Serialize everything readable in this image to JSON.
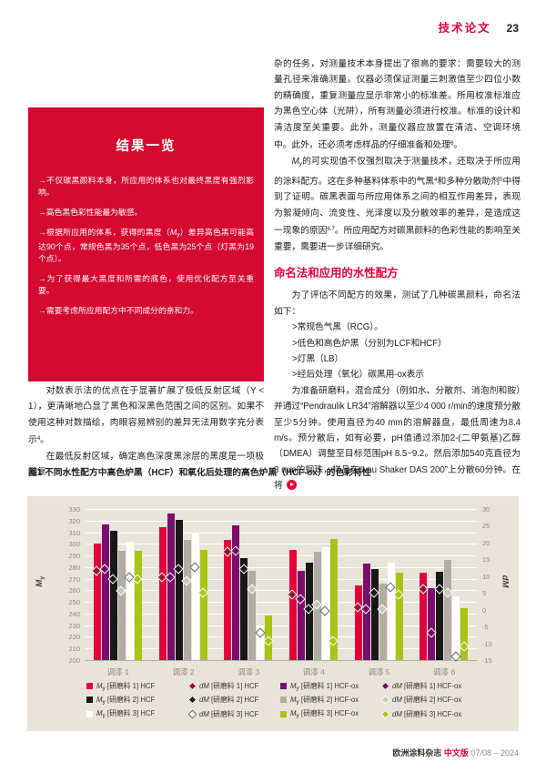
{
  "header": {
    "title": "技术论文",
    "page_number": "23"
  },
  "results_box": {
    "title": "结果一览",
    "bullets": [
      "→不仅碳黑颜料本身，所应用的体系也对最终黑度有强烈影响。",
      "→高色黑色彩性能最为敏感。",
      "→根据所应用的体系，获得的黑度（My）差异高色黑可能高达90个点，常规色黑为35个点，低色黑为25个点（灯黑为19个点）。",
      "→为了获得最大黑度和所需的底色，使用优化配方至关重要。",
      "→需要考虑所应用配方中不同成分的亲和力。"
    ]
  },
  "left_column": {
    "paragraph1": "对数表示法的优点在于显著扩展了极低反射区域（Y < 1），更清晰地凸显了黑色和深黑色范围之间的区别。如果不使用这种对数描绘，肉眼容易辨别的差异无法用数字充分表示[4]。",
    "paragraph2": "在最低反射区域，确定高色深度黑涂层的黑度是一项极其复"
  },
  "right_column": {
    "paragraph1": "杂的任务，对测量技术本身提出了很高的要求：需要较大的测量孔径来准确测量。仪器必须保证测量三刺激值至少四位小数的精确度，重复测量应显示非常小的标准差。所用校准标准应为黑色空心体（光阱），所有测量必须进行校准。标准的设计和清洁度至关重要。此外，测量仪器应放置在清洁、空调环境中。此外，还必须考虑样品的仔细准备和处理[6]。",
    "paragraph2": "My的可实现值不仅强烈取决于测量技术，还取决于所应用的涂料配方。这在多种基料体系中的气黑[4]和多种分散助剂[5]中得到了证明。碳黑表面与所应用体系之间的相互作用差异，表现为絮凝倾向、流变性、光泽度以及分散效率的差异，是造成这一现象的原因[6,7]。所应用配方对碳黑颜料的色彩性能的影响至关重要，需要进一步详细研究。",
    "section_heading": "命名法和应用的水性配方",
    "intro": "为了评估不同配方的效果，测试了几种碳黑颜料，命名法如下：",
    "list": [
      ">常规色气黑（RCG）。",
      ">低色和高色炉黑（分别为LCF和HCF）",
      ">灯黑（LB）",
      ">经后处理（氧化）碳黑用-ox表示"
    ],
    "procedure": "为准备研磨料，混合成分（例如水、分散剂、消泡剂和胺）并通过“Pendraulik LR34”溶解器以至少4 000 r/min的速度预分散至少5分钟。使用直径为40 mm的溶解器盘，最低周速为8.4 m/s。预分散后，如有必要，pH值通过添加2-(二甲氨基)乙醇（DMEA）调整至目标范围pH 8.5~9.2。然后添加540克直径为3 mm的钢珠，样品在“Lau Shaker DAS 200”上分散60分钟。在将"
  },
  "chart_data": {
    "type": "bar",
    "title": "图1 不同水性配方中高色炉黑（HCF）和氧化后处理的高色炉黑（HCF-ox）的色彩特性",
    "categories": [
      "调漆 1",
      "调漆 2",
      "调漆 3",
      "调漆 4",
      "调漆 5",
      "调漆 6"
    ],
    "left_axis": {
      "label": "My",
      "min": 200,
      "max": 330,
      "step": 10
    },
    "right_axis": {
      "label": "dM",
      "min": -15,
      "max": 30,
      "step": 5
    },
    "grid": true,
    "legend_position": "bottom",
    "bar_series": [
      {
        "name": "My [研磨料 1] HCF",
        "color": "#e2033c",
        "values": [
          300,
          314,
          303,
          295,
          264,
          275
        ]
      },
      {
        "name": "My [研磨料 1] HCF-ox",
        "color": "#7b0d6d",
        "values": [
          317,
          326,
          316,
          277,
          283,
          262
        ]
      },
      {
        "name": "My [研磨料 2] HCF",
        "color": "#181818",
        "values": [
          311,
          321,
          288,
          284,
          278,
          276
        ]
      },
      {
        "name": "My [研磨料 2] HCF-ox",
        "color": "#b2ada4",
        "values": [
          294,
          303,
          277,
          293,
          266,
          286
        ]
      },
      {
        "name": "My [研磨料 3] HCF",
        "color": "#ffffff",
        "values": [
          302,
          310,
          229,
          297,
          284,
          255
        ]
      },
      {
        "name": "My [研磨料 3] HCF-ox",
        "color": "#a8c414",
        "values": [
          294,
          295,
          238,
          304,
          275,
          245
        ]
      }
    ],
    "point_series": [
      {
        "name": "dM [研磨料 1] HCF",
        "color": "#9c102f",
        "style": "filled",
        "values": [
          11.5,
          9.5,
          17,
          4.5,
          0.5,
          6
        ]
      },
      {
        "name": "dM [研磨料 1] HCF-ox",
        "color": "#6d0c60",
        "style": "filled",
        "values": [
          12,
          9.5,
          17.5,
          3,
          0,
          -7
        ]
      },
      {
        "name": "dM [研磨料 2] HCF",
        "color": "#1a1a1a",
        "style": "filled",
        "values": [
          9,
          12,
          12,
          0,
          5,
          6
        ]
      },
      {
        "name": "dM [研磨料 2] HCF-ox",
        "color": "#cac5bc",
        "style": "filled",
        "values": [
          5.5,
          8.5,
          6,
          1.5,
          0,
          5
        ]
      },
      {
        "name": "dM [研磨料 3] HCF",
        "color": "#ffffff",
        "style": "open",
        "values": [
          9.5,
          12.5,
          -7,
          -0.5,
          6.5,
          -14
        ]
      },
      {
        "name": "dM [研磨料 3] HCF-ox",
        "color": "#a8c414",
        "style": "filled",
        "values": [
          9,
          5,
          -9.5,
          -9.5,
          4.5,
          -11
        ]
      }
    ]
  },
  "footer": {
    "journal": "欧洲涂料杂志",
    "edition": "中文版",
    "issue": "07/08 – 2024"
  },
  "colors": {
    "accent_red": "#e30139",
    "box_red": "#d40a31",
    "panel_beige": "#e9e4da",
    "axis_gray": "#8d8880"
  }
}
